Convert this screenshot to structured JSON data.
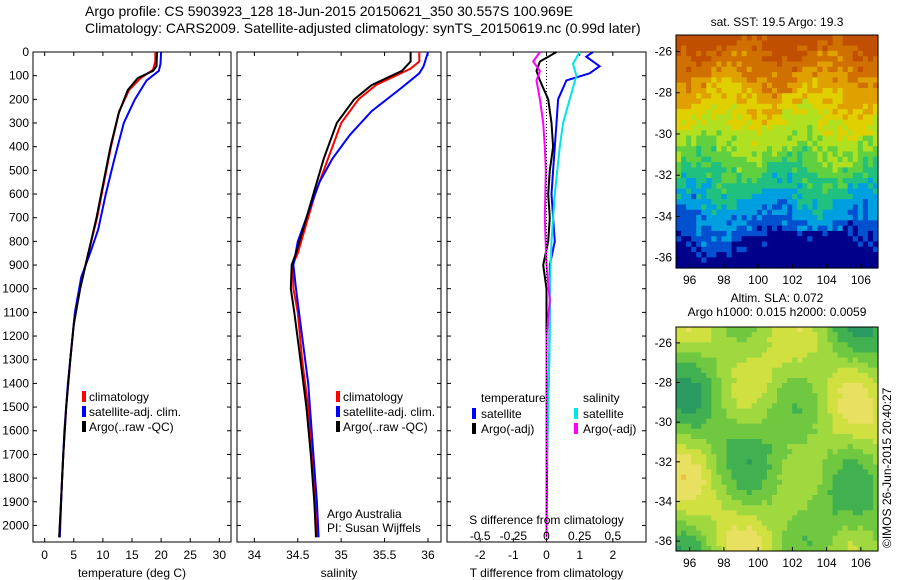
{
  "header": {
    "line1": "Argo profile: CS 5903923_128 18-Jun-2015 20150621_350 30.557S 100.969E",
    "line2": "Climatology: CARS2009. Satellite-adjusted climatology: synTS_20150619.nc (0.99d later)"
  },
  "colors": {
    "climatology": "#ff0000",
    "satellite": "#0000ff",
    "argo": "#000000",
    "sal_satellite": "#00e5e5",
    "sal_argo": "#ff00ff"
  },
  "chart_data": [
    {
      "type": "line",
      "id": "temperature",
      "xlabel": "temperature (deg C)",
      "xlim": [
        -2,
        32
      ],
      "xticks": [
        0,
        5,
        10,
        15,
        20,
        25,
        30
      ],
      "ylim": [
        0,
        2070
      ],
      "yticks": [
        0,
        100,
        200,
        300,
        400,
        500,
        600,
        700,
        800,
        900,
        1000,
        1100,
        1200,
        1300,
        1400,
        1500,
        1600,
        1700,
        1800,
        1900,
        2000
      ],
      "legend": [
        "climatology",
        "satellite-adj. clim.",
        "Argo(..raw -QC)"
      ],
      "series": [
        {
          "name": "climatology",
          "color": "#ff0000",
          "points": [
            [
              19,
              0
            ],
            [
              19,
              40
            ],
            [
              18.6,
              75
            ],
            [
              16.5,
              110
            ],
            [
              14.5,
              160
            ],
            [
              12.8,
              250
            ],
            [
              11.4,
              400
            ],
            [
              10.2,
              550
            ],
            [
              9,
              700
            ],
            [
              7.5,
              850
            ],
            [
              6,
              1000
            ],
            [
              5,
              1150
            ],
            [
              4.4,
              1300
            ],
            [
              3.7,
              1500
            ],
            [
              3.2,
              1700
            ],
            [
              2.8,
              1900
            ],
            [
              2.5,
              2050
            ]
          ]
        },
        {
          "name": "satellite-adj. clim.",
          "color": "#0000ff",
          "points": [
            [
              20,
              0
            ],
            [
              19.9,
              50
            ],
            [
              19.6,
              80
            ],
            [
              17.5,
              120
            ],
            [
              15.5,
              200
            ],
            [
              13.6,
              300
            ],
            [
              12,
              450
            ],
            [
              10.5,
              600
            ],
            [
              9.2,
              750
            ],
            [
              7.8,
              850
            ],
            [
              6.3,
              950
            ],
            [
              5.2,
              1100
            ],
            [
              4.6,
              1250
            ],
            [
              4,
              1400
            ],
            [
              3.4,
              1600
            ],
            [
              3,
              1800
            ],
            [
              2.6,
              2050
            ]
          ]
        },
        {
          "name": "Argo(..raw -QC)",
          "color": "#000000",
          "points": [
            [
              19.3,
              0
            ],
            [
              19.2,
              60
            ],
            [
              18.6,
              80
            ],
            [
              16,
              110
            ],
            [
              14.3,
              160
            ],
            [
              12.7,
              260
            ],
            [
              11.3,
              400
            ],
            [
              10.1,
              550
            ],
            [
              8.9,
              700
            ],
            [
              7.5,
              850
            ],
            [
              6.1,
              1000
            ],
            [
              5,
              1150
            ],
            [
              4.4,
              1300
            ],
            [
              3.7,
              1500
            ],
            [
              3.2,
              1700
            ],
            [
              2.8,
              1900
            ],
            [
              2.5,
              2050
            ]
          ]
        }
      ]
    },
    {
      "type": "line",
      "id": "salinity",
      "xlabel": "salinity",
      "xlim": [
        33.8,
        36.15
      ],
      "xticks": [
        34,
        34.5,
        35,
        35.5,
        36
      ],
      "ylim": [
        0,
        2070
      ],
      "legend": [
        "climatology",
        "satellite-adj. clim.",
        "Argo(..raw -QC)"
      ],
      "note": [
        "Argo Australia",
        "PI: Susan Wijffels"
      ],
      "series": [
        {
          "name": "climatology",
          "color": "#ff0000",
          "points": [
            [
              35.9,
              0
            ],
            [
              35.9,
              40
            ],
            [
              35.8,
              70
            ],
            [
              35.4,
              140
            ],
            [
              35.2,
              200
            ],
            [
              35,
              300
            ],
            [
              34.85,
              450
            ],
            [
              34.7,
              600
            ],
            [
              34.58,
              750
            ],
            [
              34.5,
              850
            ],
            [
              34.44,
              900
            ],
            [
              34.45,
              1000
            ],
            [
              34.5,
              1100
            ],
            [
              34.55,
              1300
            ],
            [
              34.62,
              1500
            ],
            [
              34.66,
              1700
            ],
            [
              34.7,
              1900
            ],
            [
              34.72,
              2050
            ]
          ]
        },
        {
          "name": "satellite-adj. clim.",
          "color": "#0000ff",
          "points": [
            [
              36,
              0
            ],
            [
              35.95,
              60
            ],
            [
              35.9,
              90
            ],
            [
              35.7,
              150
            ],
            [
              35.35,
              250
            ],
            [
              35.1,
              350
            ],
            [
              34.9,
              450
            ],
            [
              34.75,
              550
            ],
            [
              34.6,
              700
            ],
            [
              34.5,
              800
            ],
            [
              34.45,
              900
            ],
            [
              34.48,
              1000
            ],
            [
              34.55,
              1200
            ],
            [
              34.62,
              1400
            ],
            [
              34.68,
              1700
            ],
            [
              34.72,
              1900
            ],
            [
              34.74,
              2050
            ]
          ]
        },
        {
          "name": "Argo(..raw -QC)",
          "color": "#000000",
          "points": [
            [
              35.8,
              0
            ],
            [
              35.8,
              40
            ],
            [
              35.7,
              80
            ],
            [
              35.35,
              140
            ],
            [
              35.15,
              200
            ],
            [
              34.95,
              300
            ],
            [
              34.8,
              450
            ],
            [
              34.68,
              600
            ],
            [
              34.56,
              750
            ],
            [
              34.48,
              850
            ],
            [
              34.43,
              900
            ],
            [
              34.42,
              1000
            ],
            [
              34.46,
              1100
            ],
            [
              34.53,
              1300
            ],
            [
              34.6,
              1500
            ],
            [
              34.65,
              1700
            ],
            [
              34.69,
              1900
            ],
            [
              34.71,
              2050
            ]
          ]
        }
      ]
    },
    {
      "type": "line",
      "id": "difference",
      "xlabel": "T difference from climatology",
      "xlabel2": "S difference from climatology",
      "xlim": [
        -3,
        3
      ],
      "xticks": [
        -2,
        -1,
        0,
        1,
        2
      ],
      "xticks2": [
        -0.5,
        -0.25,
        0,
        0.25,
        0.5
      ],
      "ylim": [
        0,
        2070
      ],
      "legend_temperature": {
        "title": "temperature",
        "items": [
          "satellite",
          "Argo(-adj)"
        ]
      },
      "legend_salinity": {
        "title": "salinity",
        "items": [
          "satellite",
          "Argo(-adj)"
        ]
      },
      "series": [
        {
          "name": "T satellite",
          "color": "#0000ff",
          "points": [
            [
              1.4,
              0
            ],
            [
              1.2,
              20
            ],
            [
              1.6,
              60
            ],
            [
              1.3,
              90
            ],
            [
              0.6,
              120
            ],
            [
              0.35,
              200
            ],
            [
              0.3,
              300
            ],
            [
              0.2,
              500
            ],
            [
              0.15,
              600
            ],
            [
              0.2,
              700
            ],
            [
              0.25,
              800
            ],
            [
              0.1,
              900
            ],
            [
              0.1,
              1000
            ],
            [
              0.1,
              1100
            ],
            [
              0.08,
              1300
            ],
            [
              0.05,
              1500
            ],
            [
              0.02,
              1700
            ],
            [
              0.0,
              2050
            ]
          ]
        },
        {
          "name": "T Argo(-adj)",
          "color": "#000000",
          "points": [
            [
              0.3,
              0
            ],
            [
              -0.2,
              40
            ],
            [
              -0.3,
              80
            ],
            [
              -0.2,
              120
            ],
            [
              0.05,
              200
            ],
            [
              0.15,
              300
            ],
            [
              0.2,
              400
            ],
            [
              0.1,
              500
            ],
            [
              0.05,
              600
            ],
            [
              0.1,
              700
            ],
            [
              0.05,
              800
            ],
            [
              -0.1,
              900
            ],
            [
              0.0,
              1000
            ],
            [
              0.0,
              1200
            ],
            [
              0.0,
              1400
            ],
            [
              0.0,
              1600
            ],
            [
              0.0,
              2050
            ]
          ]
        },
        {
          "name": "S satellite",
          "color": "#00e5e5",
          "points": [
            [
              1.0,
              0
            ],
            [
              0.8,
              50
            ],
            [
              0.9,
              100
            ],
            [
              0.7,
              200
            ],
            [
              0.5,
              300
            ],
            [
              0.4,
              400
            ],
            [
              0.25,
              600
            ],
            [
              0.15,
              800
            ],
            [
              0.1,
              1000
            ],
            [
              0.1,
              1200
            ],
            [
              0.05,
              1500
            ],
            [
              0.0,
              1800
            ],
            [
              0.0,
              2050
            ]
          ]
        },
        {
          "name": "S Argo(-adj)",
          "color": "#ff00ff",
          "points": [
            [
              -0.2,
              0
            ],
            [
              -0.4,
              40
            ],
            [
              -0.2,
              80
            ],
            [
              -0.3,
              120
            ],
            [
              -0.2,
              200
            ],
            [
              -0.1,
              300
            ],
            [
              -0.05,
              400
            ],
            [
              -0.02,
              500
            ],
            [
              -0.05,
              700
            ],
            [
              0.0,
              900
            ],
            [
              0.1,
              1050
            ],
            [
              0.0,
              1200
            ],
            [
              0.0,
              1400
            ],
            [
              0.0,
              1700
            ],
            [
              0.0,
              2050
            ]
          ]
        }
      ]
    },
    {
      "type": "heatmap",
      "id": "sst-map",
      "title": "sat. SST: 19.5 Argo: 19.3",
      "xlim": [
        95.2,
        107
      ],
      "ylim": [
        -36.5,
        -25.2
      ],
      "xticks": [
        96,
        98,
        100,
        102,
        104,
        106
      ],
      "yticks": [
        -26,
        -28,
        -30,
        -32,
        -34,
        -36
      ],
      "colorscale": [
        "#00008b",
        "#0050d0",
        "#00a0e0",
        "#20c080",
        "#60d040",
        "#b0e020",
        "#e0d000",
        "#e0a000",
        "#d07000",
        "#c05000"
      ]
    },
    {
      "type": "heatmap",
      "id": "sla-map",
      "title": "Altim. SLA: 0.072",
      "subtitle": "Argo h1000: 0.015 h2000: 0.0059",
      "xlim": [
        95.2,
        107
      ],
      "ylim": [
        -36.5,
        -25.2
      ],
      "xticks": [
        96,
        98,
        100,
        102,
        104,
        106
      ],
      "yticks": [
        -26,
        -28,
        -30,
        -32,
        -34,
        -36
      ],
      "colorscale": [
        "#2a9a60",
        "#40b050",
        "#70c840",
        "#a0d840",
        "#d0e040",
        "#e8e060",
        "#f0c040"
      ]
    }
  ],
  "stamp": "©IMOS 26-Jun-2015 20:40:27"
}
